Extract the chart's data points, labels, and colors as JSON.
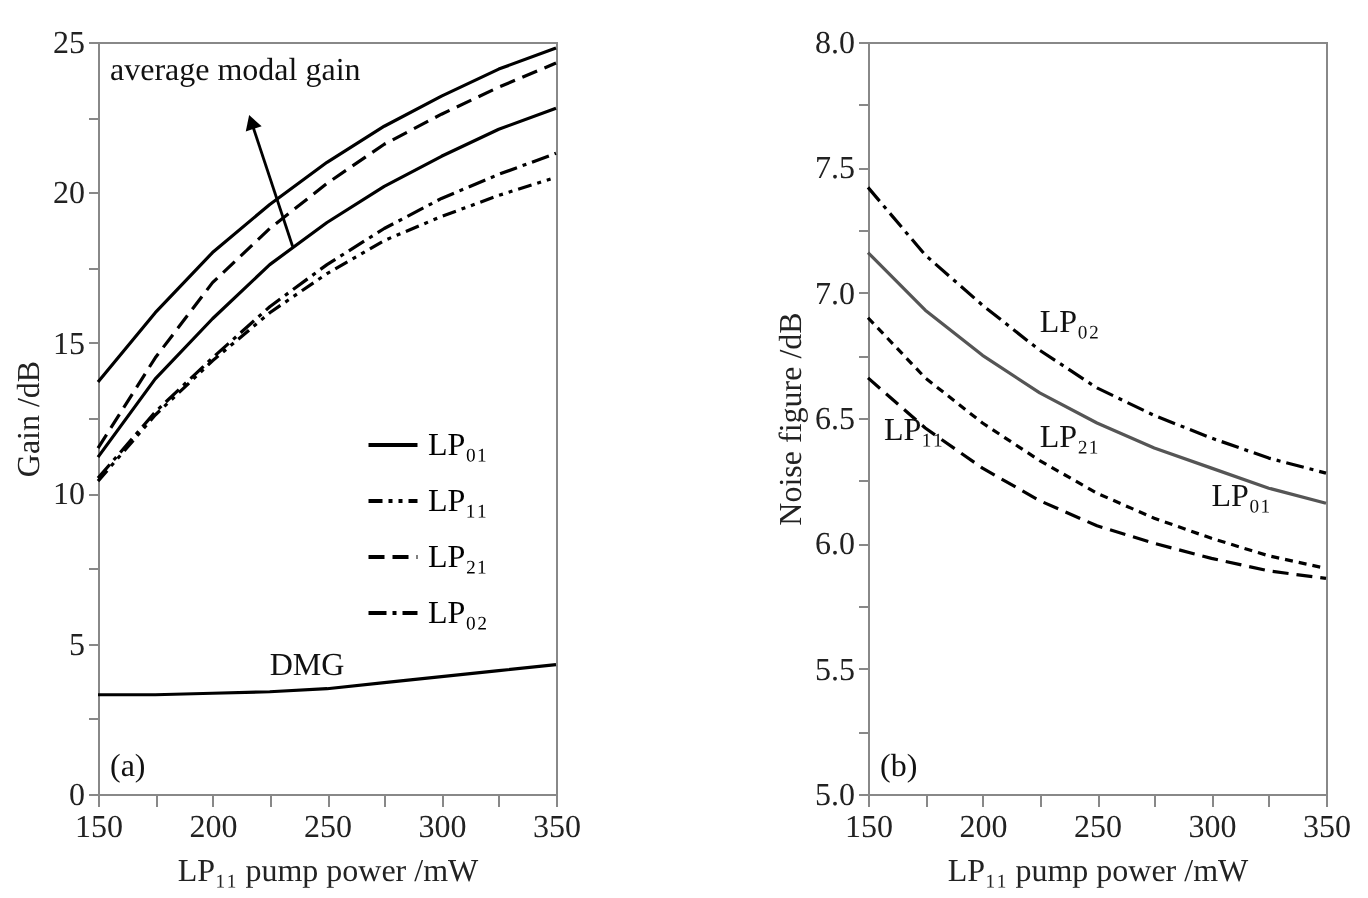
{
  "chart_data": [
    {
      "type": "line",
      "xlabel": "LP₁₁ pump power /mW",
      "ylabel": "Gain /dB",
      "x": [
        150,
        175,
        200,
        225,
        250,
        275,
        300,
        325,
        350
      ],
      "series": [
        {
          "name": "LP₀₁",
          "color": "#000000",
          "line_style": "solid",
          "values": [
            13.7,
            16.0,
            18.0,
            19.6,
            21.0,
            22.2,
            23.2,
            24.1,
            24.8
          ]
        },
        {
          "name": "LP₁₁",
          "color": "#000000",
          "line_style": "dashdotdot",
          "values": [
            10.4,
            12.6,
            14.4,
            16.0,
            17.3,
            18.4,
            19.2,
            19.9,
            20.5
          ]
        },
        {
          "name": "LP₂₁",
          "color": "#000000",
          "line_style": "dashed",
          "values": [
            11.5,
            14.5,
            17.0,
            18.8,
            20.3,
            21.6,
            22.6,
            23.5,
            24.3
          ]
        },
        {
          "name": "LP₀₂",
          "color": "#000000",
          "line_style": "dashdot",
          "values": [
            10.5,
            12.7,
            14.5,
            16.2,
            17.6,
            18.8,
            19.8,
            20.6,
            21.3
          ]
        },
        {
          "color": "#000000",
          "line_style": "solid",
          "values": [
            11.2,
            13.8,
            15.8,
            17.6,
            19.0,
            20.2,
            21.2,
            22.1,
            22.8
          ]
        },
        {
          "name": "DMG",
          "color": "#000000",
          "line_style": "solid",
          "values": [
            3.3,
            3.3,
            3.35,
            3.4,
            3.5,
            3.7,
            3.9,
            4.1,
            4.3
          ]
        }
      ],
      "xlim": [
        150,
        350
      ],
      "xticks": [
        150,
        {
          "value": 175,
          "label": null
        },
        200,
        {
          "value": 225,
          "label": null
        },
        250,
        {
          "value": 275,
          "label": null
        },
        300,
        {
          "value": 325,
          "label": null
        },
        350
      ],
      "ylim": [
        0,
        25
      ],
      "yticks": [
        0,
        {
          "value": 2.5,
          "label": null
        },
        5,
        {
          "value": 7.5,
          "label": null
        },
        10,
        {
          "value": 12.5,
          "label": null
        },
        15,
        {
          "value": 17.5,
          "label": null
        },
        20,
        {
          "value": 22.5,
          "label": null
        },
        25
      ],
      "grid": false,
      "legend": "right",
      "annotations": [
        "(a)",
        {
          "text": "average modal gain",
          "x": 235,
          "y": 18.2
        }
      ]
    },
    {
      "type": "line",
      "xlabel": "LP₁₁ pump power /mW",
      "ylabel": "Noise figure /dB",
      "x": [
        150,
        175,
        200,
        225,
        250,
        275,
        300,
        325,
        350
      ],
      "series": [
        {
          "name": "LP₀₂",
          "color": "#000000",
          "line_style": "dashdot",
          "values": [
            7.42,
            7.15,
            6.95,
            6.77,
            6.62,
            6.51,
            6.42,
            6.34,
            6.28
          ]
        },
        {
          "name": "LP₀₁",
          "color": "#555555",
          "line_style": "solid",
          "values": [
            7.16,
            6.93,
            6.75,
            6.6,
            6.48,
            6.38,
            6.3,
            6.22,
            6.16
          ]
        },
        {
          "name": "LP₂₁",
          "color": "#000000",
          "line_style": "dotted",
          "values": [
            6.9,
            6.66,
            6.48,
            6.33,
            6.2,
            6.1,
            6.02,
            5.95,
            5.9
          ]
        },
        {
          "name": "LP₁₁",
          "color": "#000000",
          "line_style": "dashed",
          "values": [
            6.66,
            6.46,
            6.3,
            6.17,
            6.07,
            6.0,
            5.94,
            5.89,
            5.86
          ]
        }
      ],
      "xlim": [
        150,
        350
      ],
      "xticks": [
        150,
        {
          "value": 175,
          "label": null
        },
        200,
        {
          "value": 225,
          "label": null
        },
        250,
        {
          "value": 275,
          "label": null
        },
        300,
        {
          "value": 325,
          "label": null
        },
        350
      ],
      "ylim": [
        5,
        8
      ],
      "yticks": [
        {
          "value": 5,
          "label": "5.0"
        },
        {
          "value": 5.25,
          "label": null
        },
        {
          "value": 5.5,
          "label": "5.5"
        },
        {
          "value": 5.75,
          "label": null
        },
        {
          "value": 6,
          "label": "6.0"
        },
        {
          "value": 6.25,
          "label": null
        },
        {
          "value": 6.5,
          "label": "6.5"
        },
        {
          "value": 6.75,
          "label": null
        },
        {
          "value": 7,
          "label": "7.0"
        },
        {
          "value": 7.25,
          "label": null
        },
        {
          "value": 7.5,
          "label": "7.5"
        },
        {
          "value": 7.75,
          "label": null
        },
        {
          "value": 8,
          "label": "8.0"
        }
      ],
      "grid": false,
      "legend": false,
      "annotations": [
        "(b)"
      ]
    }
  ]
}
